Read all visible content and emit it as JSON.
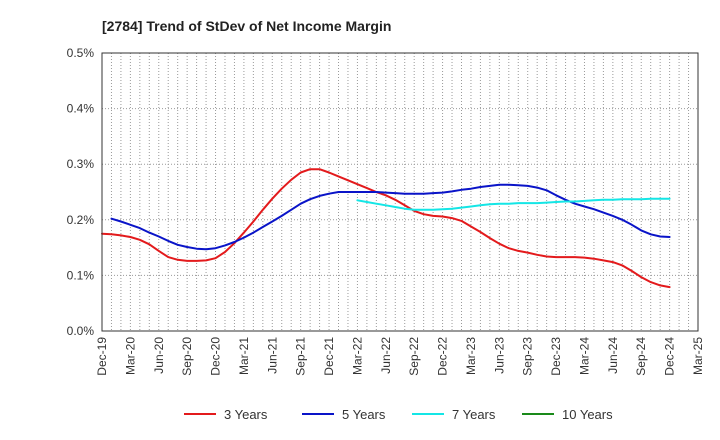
{
  "chart_data": {
    "type": "line",
    "title": "[2784]  Trend of StDev of Net Income Margin",
    "xlabel": "",
    "ylabel": "",
    "x": [
      "Dec-19",
      "Mar-20",
      "Jun-20",
      "Sep-20",
      "Dec-20",
      "Mar-21",
      "Jun-21",
      "Sep-21",
      "Dec-21",
      "Mar-22",
      "Jun-22",
      "Sep-22",
      "Dec-22",
      "Mar-23",
      "Jun-23",
      "Sep-23",
      "Dec-23",
      "Mar-24",
      "Jun-24",
      "Sep-24",
      "Dec-24",
      "Mar-25"
    ],
    "ylim": [
      0,
      0.5
    ],
    "yticks": [
      "0.0%",
      "0.1%",
      "0.2%",
      "0.3%",
      "0.4%",
      "0.5%"
    ],
    "grid": true,
    "legend_position": "bottom",
    "series": [
      {
        "name": "3 Years",
        "color": "#e31a1c",
        "points": [
          [
            "Dec-19",
            0.175
          ],
          [
            "Jan-20",
            0.174
          ],
          [
            "Feb-20",
            0.172
          ],
          [
            "Mar-20",
            0.169
          ],
          [
            "Apr-20",
            0.164
          ],
          [
            "May-20",
            0.156
          ],
          [
            "Jun-20",
            0.144
          ],
          [
            "Jul-20",
            0.133
          ],
          [
            "Aug-20",
            0.128
          ],
          [
            "Sep-20",
            0.126
          ],
          [
            "Oct-20",
            0.126
          ],
          [
            "Nov-20",
            0.127
          ],
          [
            "Dec-20",
            0.131
          ],
          [
            "Jan-21",
            0.142
          ],
          [
            "Feb-21",
            0.158
          ],
          [
            "Mar-21",
            0.177
          ],
          [
            "Apr-21",
            0.197
          ],
          [
            "May-21",
            0.218
          ],
          [
            "Jun-21",
            0.238
          ],
          [
            "Jul-21",
            0.256
          ],
          [
            "Aug-21",
            0.272
          ],
          [
            "Sep-21",
            0.285
          ],
          [
            "Oct-21",
            0.291
          ],
          [
            "Nov-21",
            0.291
          ],
          [
            "Dec-21",
            0.285
          ],
          [
            "Jan-22",
            0.278
          ],
          [
            "Feb-22",
            0.271
          ],
          [
            "Mar-22",
            0.264
          ],
          [
            "Apr-22",
            0.257
          ],
          [
            "May-22",
            0.25
          ],
          [
            "Jun-22",
            0.244
          ],
          [
            "Jul-22",
            0.236
          ],
          [
            "Aug-22",
            0.226
          ],
          [
            "Sep-22",
            0.216
          ],
          [
            "Oct-22",
            0.21
          ],
          [
            "Nov-22",
            0.207
          ],
          [
            "Dec-22",
            0.206
          ],
          [
            "Jan-23",
            0.203
          ],
          [
            "Feb-23",
            0.198
          ],
          [
            "Mar-23",
            0.188
          ],
          [
            "Apr-23",
            0.178
          ],
          [
            "May-23",
            0.167
          ],
          [
            "Jun-23",
            0.157
          ],
          [
            "Jul-23",
            0.149
          ],
          [
            "Aug-23",
            0.144
          ],
          [
            "Sep-23",
            0.141
          ],
          [
            "Oct-23",
            0.137
          ],
          [
            "Nov-23",
            0.134
          ],
          [
            "Dec-23",
            0.133
          ],
          [
            "Jan-24",
            0.133
          ],
          [
            "Feb-24",
            0.133
          ],
          [
            "Mar-24",
            0.132
          ],
          [
            "Apr-24",
            0.13
          ],
          [
            "May-24",
            0.127
          ],
          [
            "Jun-24",
            0.124
          ],
          [
            "Jul-24",
            0.118
          ],
          [
            "Aug-24",
            0.108
          ],
          [
            "Sep-24",
            0.097
          ],
          [
            "Oct-24",
            0.088
          ],
          [
            "Nov-24",
            0.082
          ],
          [
            "Dec-24",
            0.079
          ]
        ]
      },
      {
        "name": "5 Years",
        "color": "#0a14c8",
        "points": [
          [
            "Jan-20",
            0.202
          ],
          [
            "Feb-20",
            0.197
          ],
          [
            "Mar-20",
            0.191
          ],
          [
            "Apr-20",
            0.185
          ],
          [
            "May-20",
            0.177
          ],
          [
            "Jun-20",
            0.17
          ],
          [
            "Jul-20",
            0.162
          ],
          [
            "Aug-20",
            0.155
          ],
          [
            "Sep-20",
            0.151
          ],
          [
            "Oct-20",
            0.148
          ],
          [
            "Nov-20",
            0.147
          ],
          [
            "Dec-20",
            0.149
          ],
          [
            "Jan-21",
            0.154
          ],
          [
            "Feb-21",
            0.16
          ],
          [
            "Mar-21",
            0.168
          ],
          [
            "Apr-21",
            0.177
          ],
          [
            "May-21",
            0.187
          ],
          [
            "Jun-21",
            0.197
          ],
          [
            "Jul-21",
            0.207
          ],
          [
            "Aug-21",
            0.218
          ],
          [
            "Sep-21",
            0.229
          ],
          [
            "Oct-21",
            0.237
          ],
          [
            "Nov-21",
            0.243
          ],
          [
            "Dec-21",
            0.247
          ],
          [
            "Jan-22",
            0.25
          ],
          [
            "Feb-22",
            0.25
          ],
          [
            "Mar-22",
            0.25
          ],
          [
            "Apr-22",
            0.25
          ],
          [
            "May-22",
            0.25
          ],
          [
            "Jun-22",
            0.249
          ],
          [
            "Jul-22",
            0.248
          ],
          [
            "Aug-22",
            0.247
          ],
          [
            "Sep-22",
            0.247
          ],
          [
            "Oct-22",
            0.247
          ],
          [
            "Nov-22",
            0.248
          ],
          [
            "Dec-22",
            0.249
          ],
          [
            "Jan-23",
            0.251
          ],
          [
            "Feb-23",
            0.254
          ],
          [
            "Mar-23",
            0.256
          ],
          [
            "Apr-23",
            0.259
          ],
          [
            "May-23",
            0.261
          ],
          [
            "Jun-23",
            0.263
          ],
          [
            "Jul-23",
            0.263
          ],
          [
            "Aug-23",
            0.262
          ],
          [
            "Sep-23",
            0.261
          ],
          [
            "Oct-23",
            0.258
          ],
          [
            "Nov-23",
            0.253
          ],
          [
            "Dec-23",
            0.244
          ],
          [
            "Jan-24",
            0.236
          ],
          [
            "Feb-24",
            0.229
          ],
          [
            "Mar-24",
            0.224
          ],
          [
            "Apr-24",
            0.219
          ],
          [
            "May-24",
            0.213
          ],
          [
            "Jun-24",
            0.207
          ],
          [
            "Jul-24",
            0.2
          ],
          [
            "Aug-24",
            0.191
          ],
          [
            "Sep-24",
            0.181
          ],
          [
            "Oct-24",
            0.174
          ],
          [
            "Nov-24",
            0.17
          ],
          [
            "Dec-24",
            0.169
          ]
        ]
      },
      {
        "name": "7 Years",
        "color": "#14e6e6",
        "points": [
          [
            "Mar-22",
            0.235
          ],
          [
            "Apr-22",
            0.232
          ],
          [
            "May-22",
            0.229
          ],
          [
            "Jun-22",
            0.226
          ],
          [
            "Jul-22",
            0.223
          ],
          [
            "Aug-22",
            0.22
          ],
          [
            "Sep-22",
            0.218
          ],
          [
            "Oct-22",
            0.218
          ],
          [
            "Nov-22",
            0.218
          ],
          [
            "Dec-22",
            0.219
          ],
          [
            "Jan-23",
            0.22
          ],
          [
            "Feb-23",
            0.222
          ],
          [
            "Mar-23",
            0.224
          ],
          [
            "Apr-23",
            0.226
          ],
          [
            "May-23",
            0.228
          ],
          [
            "Jun-23",
            0.229
          ],
          [
            "Jul-23",
            0.229
          ],
          [
            "Aug-23",
            0.23
          ],
          [
            "Sep-23",
            0.23
          ],
          [
            "Oct-23",
            0.23
          ],
          [
            "Nov-23",
            0.231
          ],
          [
            "Dec-23",
            0.232
          ],
          [
            "Jan-24",
            0.233
          ],
          [
            "Feb-24",
            0.233
          ],
          [
            "Mar-24",
            0.234
          ],
          [
            "Apr-24",
            0.235
          ],
          [
            "May-24",
            0.236
          ],
          [
            "Jun-24",
            0.236
          ],
          [
            "Jul-24",
            0.237
          ],
          [
            "Aug-24",
            0.237
          ],
          [
            "Sep-24",
            0.237
          ],
          [
            "Oct-24",
            0.238
          ],
          [
            "Nov-24",
            0.238
          ],
          [
            "Dec-24",
            0.238
          ]
        ]
      },
      {
        "name": "10 Years",
        "color": "#1a8a1a",
        "points": []
      }
    ]
  }
}
